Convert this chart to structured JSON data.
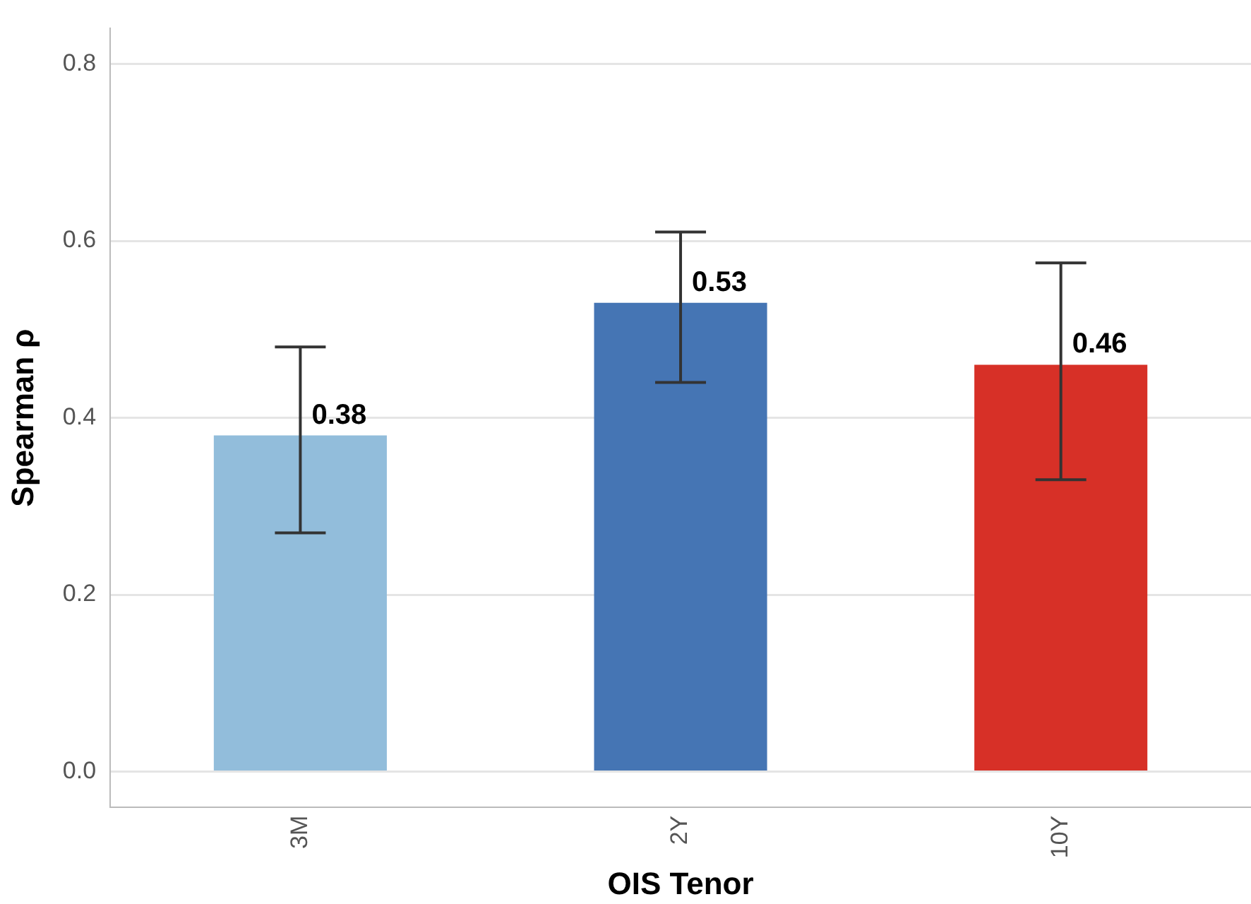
{
  "chart_data": {
    "type": "bar",
    "xlabel": "OIS Tenor",
    "ylabel": "Spearman ρ",
    "categories": [
      "3M",
      "2Y",
      "10Y"
    ],
    "values": [
      0.38,
      0.53,
      0.46
    ],
    "colors": [
      "#92bddb",
      "#4575b4",
      "#d73027"
    ],
    "errors": [
      [
        0.27,
        0.48
      ],
      [
        0.44,
        0.61
      ],
      [
        0.33,
        0.575
      ]
    ],
    "data_labels": true,
    "ylim": [
      -0.04,
      0.84
    ],
    "yticks": [
      {
        "value": 0,
        "label": "0.0"
      },
      0.2,
      0.4,
      0.6,
      0.8
    ],
    "grid": "y",
    "legend": false
  }
}
